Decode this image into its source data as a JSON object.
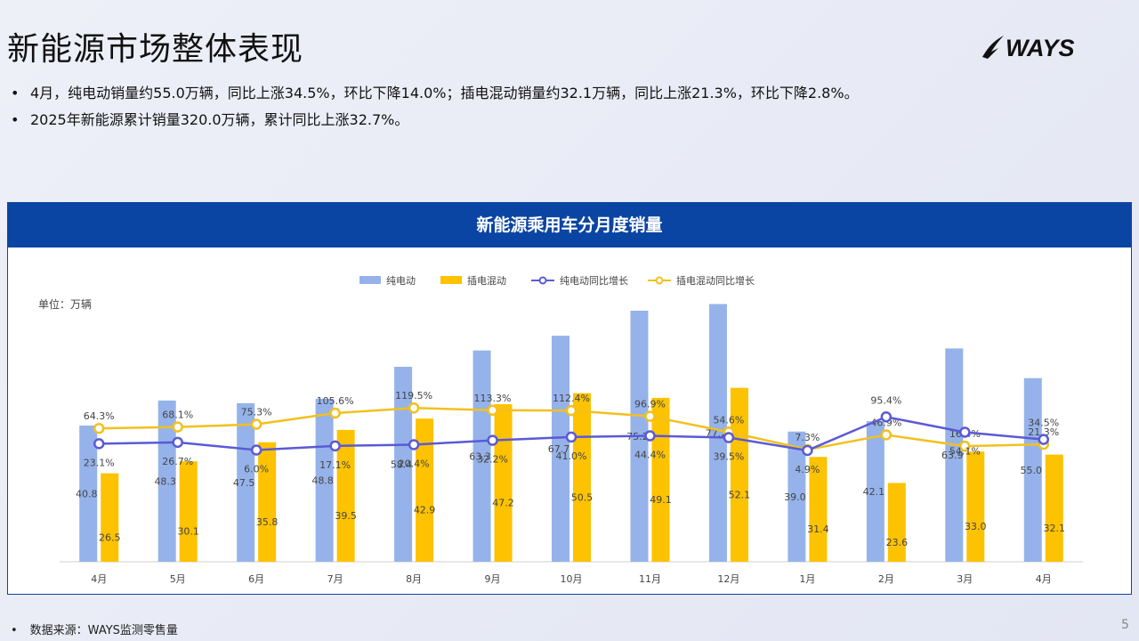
{
  "page": {
    "title": "新能源市场整体表现",
    "logo_text": "WAYS",
    "bullets": [
      "4月，纯电动销量约55.0万辆，同比上涨34.5%，环比下降14.0%；插电混动销量约32.1万辆，同比上涨21.3%，环比下降2.8%。",
      "2025年新能源累计销量320.0万辆，累计同比上涨32.7%。"
    ],
    "bullet_symbol": "•",
    "footer": "数据来源：WAYS监测零售量",
    "page_number": "5"
  },
  "colors": {
    "panel_header": "#0b45a3",
    "bev_bar": "#95b3ea",
    "phev_bar": "#fdc200",
    "bev_line": "#5a5ad6",
    "phev_line": "#f2c01e"
  },
  "chart_data": {
    "type": "bar",
    "title": "新能源乘用车分月度销量",
    "unit_label": "单位：万辆",
    "categories": [
      "4月",
      "5月",
      "6月",
      "7月",
      "8月",
      "9月",
      "10月",
      "11月",
      "12月",
      "1月",
      "2月",
      "3月",
      "4月"
    ],
    "series": [
      {
        "name": "纯电动",
        "kind": "bar",
        "values": [
          40.8,
          48.3,
          47.5,
          48.8,
          58.4,
          63.3,
          67.7,
          75.2,
          77.2,
          39.0,
          42.1,
          63.9,
          55.0
        ]
      },
      {
        "name": "插电混动",
        "kind": "bar",
        "values": [
          26.5,
          30.1,
          35.8,
          39.5,
          42.9,
          47.2,
          50.5,
          49.1,
          52.1,
          31.4,
          23.6,
          33.0,
          32.1
        ]
      },
      {
        "name": "纯电动同比增长",
        "kind": "line",
        "unit": "%",
        "values": [
          23.1,
          26.7,
          6.0,
          17.1,
          20.4,
          32.2,
          41.0,
          44.4,
          39.5,
          4.9,
          95.4,
          54.1,
          34.5
        ]
      },
      {
        "name": "插电混动同比增长",
        "kind": "line",
        "unit": "%",
        "values": [
          64.3,
          68.1,
          75.3,
          105.6,
          119.5,
          113.3,
          112.4,
          96.9,
          54.6,
          7.3,
          46.9,
          16.4,
          21.3
        ]
      }
    ],
    "legend_position": "top-center",
    "grid": false
  }
}
